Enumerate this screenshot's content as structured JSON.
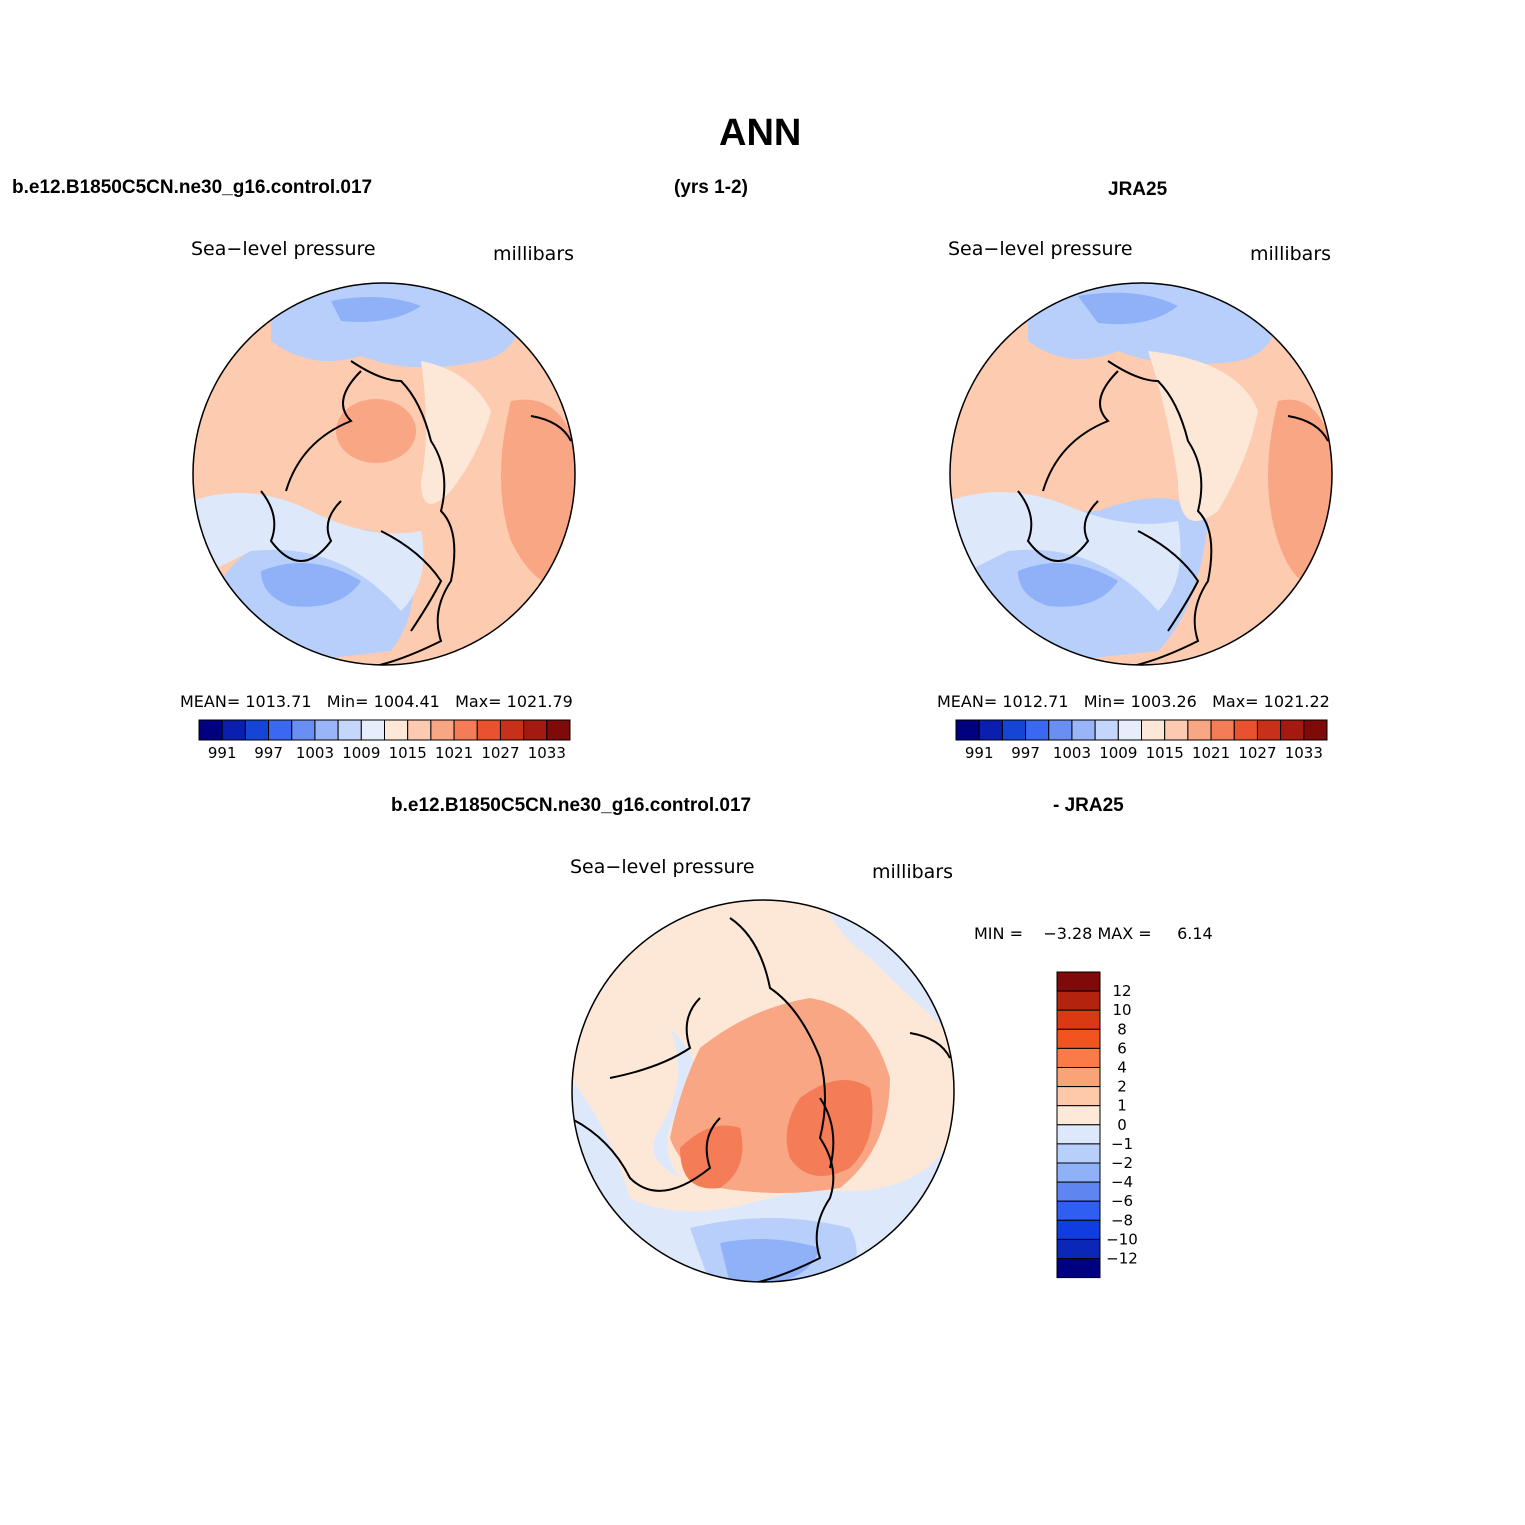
{
  "main_title": "ANN",
  "header": {
    "case_name": "b.e12.B1850C5CN.ne30_g16.control.017",
    "years": "(yrs 1-2)",
    "obs_name": "JRA25"
  },
  "panels": [
    {
      "variable": "Sea−level pressure",
      "units": "millibars",
      "stats": {
        "mean_label": "MEAN=",
        "mean": "1013.71",
        "min_label": "Min=",
        "min": "1004.41",
        "max_label": "Max=",
        "max": "1021.79"
      }
    },
    {
      "variable": "Sea−level pressure",
      "units": "millibars",
      "stats": {
        "mean_label": "MEAN=",
        "mean": "1012.71",
        "min_label": "Min=",
        "min": "1003.26",
        "max_label": "Max=",
        "max": "1021.22"
      }
    }
  ],
  "diff_header": {
    "case_name": "b.e12.B1850C5CN.ne30_g16.control.017",
    "obs_name": "- JRA25"
  },
  "diff_panel": {
    "variable": "Sea−level pressure",
    "units": "millibars",
    "min_label": "MIN =",
    "min": "−3.28",
    "max_label": "MAX =",
    "max": "6.14"
  },
  "colorbar_abs": {
    "colors": [
      "#000080",
      "#0a1fb0",
      "#1545d6",
      "#3b68f0",
      "#6a8ff2",
      "#9ab5f7",
      "#c4d6fb",
      "#e6eefc",
      "#fde8d8",
      "#fccab0",
      "#f8a684",
      "#f47c57",
      "#e9512f",
      "#c9301a",
      "#a51a10",
      "#7e0a0a"
    ],
    "labels": [
      "991",
      "997",
      "1003",
      "1009",
      "1015",
      "1021",
      "1027",
      "1033"
    ]
  },
  "colorbar_diff": {
    "colors": [
      "#7e0a0a",
      "#b3240f",
      "#d93a12",
      "#f1541f",
      "#f97b48",
      "#fba378",
      "#fdc9a8",
      "#fee8d8",
      "#dde9fb",
      "#b8cffb",
      "#8eb1f7",
      "#5f86f0",
      "#2f5ff0",
      "#0f3de0",
      "#0a27b8",
      "#000080"
    ],
    "labels": [
      "12",
      "10",
      "8",
      "6",
      "4",
      "2",
      "1",
      "0",
      "−1",
      "−2",
      "−4",
      "−6",
      "−8",
      "−10",
      "−12"
    ]
  },
  "map_colors": {
    "ocean_base": "#fdcbb0",
    "warm1": "#fde8d8",
    "warm2": "#f8a684",
    "warm3": "#f47c57",
    "cool1": "#dde9fb",
    "cool2": "#b8cffb",
    "cool3": "#8eb1f7",
    "cool4": "#6a8ff2"
  }
}
